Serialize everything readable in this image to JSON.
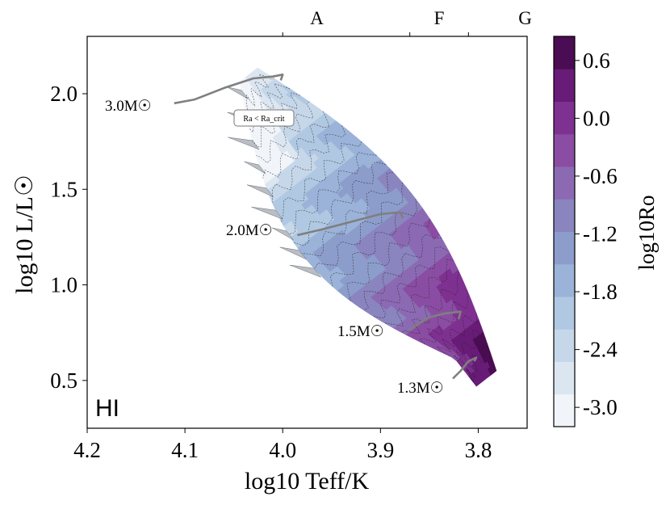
{
  "chart_data": {
    "type": "heatmap",
    "panel_label": "HI",
    "xlabel": "log10 Teff/K",
    "ylabel": "log10 L/L☉",
    "xlim": [
      4.2,
      3.75
    ],
    "ylim": [
      0.25,
      2.3
    ],
    "x_ticks": [
      "4.2",
      "4.1",
      "4.0",
      "3.9",
      "3.8"
    ],
    "y_ticks": [
      "0.5",
      "1.0",
      "1.5",
      "2.0"
    ],
    "spectral_types": [
      {
        "label": "A",
        "x": 3.965
      },
      {
        "label": "F",
        "x": 3.84
      },
      {
        "label": "G",
        "x": 3.752
      }
    ],
    "spectral_boundaries": [
      4.0,
      3.87,
      3.81
    ],
    "colorbar": {
      "label": "log10Ro",
      "range": [
        -3.2,
        0.85
      ],
      "ticks": [
        "0.6",
        "0.0",
        "-0.6",
        "-1.2",
        "-1.8",
        "-2.4",
        "-3.0"
      ],
      "colors": [
        "#f1f5fa",
        "#dce6f1",
        "#c6d7ea",
        "#b0c8e2",
        "#9bb3d8",
        "#8c9dcb",
        "#8a84bf",
        "#8b6ab3",
        "#8a4da3",
        "#7e3190",
        "#681b77",
        "#4a0c52"
      ]
    },
    "annotation": "Ra < Ra_crit",
    "tracks": [
      {
        "name": "3.0M☉",
        "points": [
          [
            4.111,
            1.95
          ],
          [
            4.09,
            1.97
          ],
          [
            4.06,
            2.03
          ],
          [
            4.03,
            2.08
          ],
          [
            4.01,
            2.09
          ],
          [
            4.0,
            2.1
          ],
          [
            4.002,
            2.07
          ]
        ]
      },
      {
        "name": "2.0M☉",
        "points": [
          [
            3.985,
            1.26
          ],
          [
            3.96,
            1.29
          ],
          [
            3.93,
            1.33
          ],
          [
            3.9,
            1.37
          ],
          [
            3.88,
            1.38
          ],
          [
            3.877,
            1.35
          ]
        ]
      },
      {
        "name": "1.5M☉",
        "points": [
          [
            3.871,
            0.76
          ],
          [
            3.86,
            0.8
          ],
          [
            3.85,
            0.83
          ],
          [
            3.835,
            0.85
          ],
          [
            3.818,
            0.86
          ],
          [
            3.82,
            0.82
          ]
        ]
      },
      {
        "name": "1.3M☉",
        "points": [
          [
            3.826,
            0.51
          ],
          [
            3.818,
            0.55
          ],
          [
            3.81,
            0.6
          ],
          [
            3.802,
            0.62
          ],
          [
            3.804,
            0.6
          ]
        ]
      }
    ],
    "colorbar_label": "log10Ro"
  }
}
